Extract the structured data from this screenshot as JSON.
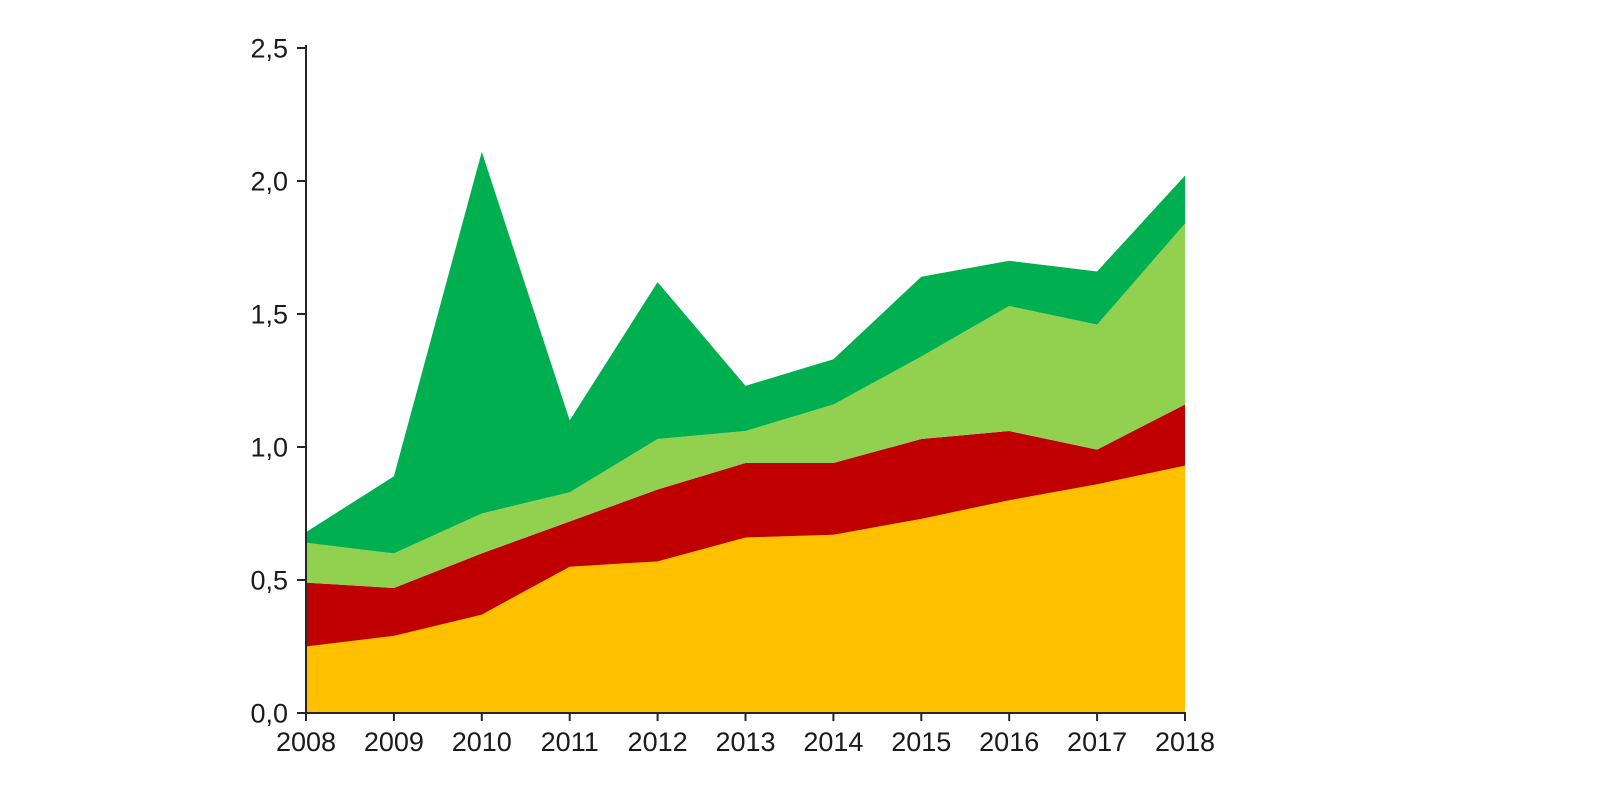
{
  "page": {
    "background": "#FFFFFF"
  },
  "chart_data": {
    "type": "area",
    "stacked": true,
    "title": "",
    "xlabel": "",
    "ylabel": "",
    "legend": "none",
    "grid": false,
    "categories": [
      "2008",
      "2009",
      "2010",
      "2011",
      "2012",
      "2013",
      "2014",
      "2015",
      "2016",
      "2017",
      "2018"
    ],
    "series": [
      {
        "name": "yellow",
        "color": "#FFC000",
        "values": [
          0.25,
          0.29,
          0.37,
          0.55,
          0.57,
          0.66,
          0.67,
          0.73,
          0.8,
          0.86,
          0.93
        ]
      },
      {
        "name": "dark-red",
        "color": "#C00000",
        "values": [
          0.24,
          0.18,
          0.23,
          0.17,
          0.27,
          0.28,
          0.27,
          0.3,
          0.26,
          0.13,
          0.23
        ]
      },
      {
        "name": "light-green",
        "color": "#92D050",
        "values": [
          0.15,
          0.13,
          0.15,
          0.11,
          0.19,
          0.12,
          0.22,
          0.31,
          0.47,
          0.47,
          0.68
        ]
      },
      {
        "name": "dark-green",
        "color": "#00B050",
        "values": [
          0.04,
          0.29,
          1.36,
          0.27,
          0.59,
          0.17,
          0.17,
          0.3,
          0.17,
          0.2,
          0.18
        ]
      }
    ],
    "totals": [
      0.68,
      0.89,
      2.11,
      1.1,
      1.62,
      1.23,
      1.33,
      1.64,
      1.7,
      1.66,
      2.02
    ],
    "y_axis": {
      "min": 0,
      "max": 2.5,
      "tick_step": 0.5,
      "tick_labels": [
        "0,0",
        "0,5",
        "1,0",
        "1,5",
        "2,0",
        "2,5"
      ],
      "decimal_separator": ","
    },
    "x_axis": {
      "tick_labels": [
        "2008",
        "2009",
        "2010",
        "2011",
        "2012",
        "2013",
        "2014",
        "2015",
        "2016",
        "2017",
        "2018"
      ]
    },
    "style": {
      "axis_color": "#262626",
      "label_color": "#1A1A1A",
      "font_size_px": 27
    }
  }
}
